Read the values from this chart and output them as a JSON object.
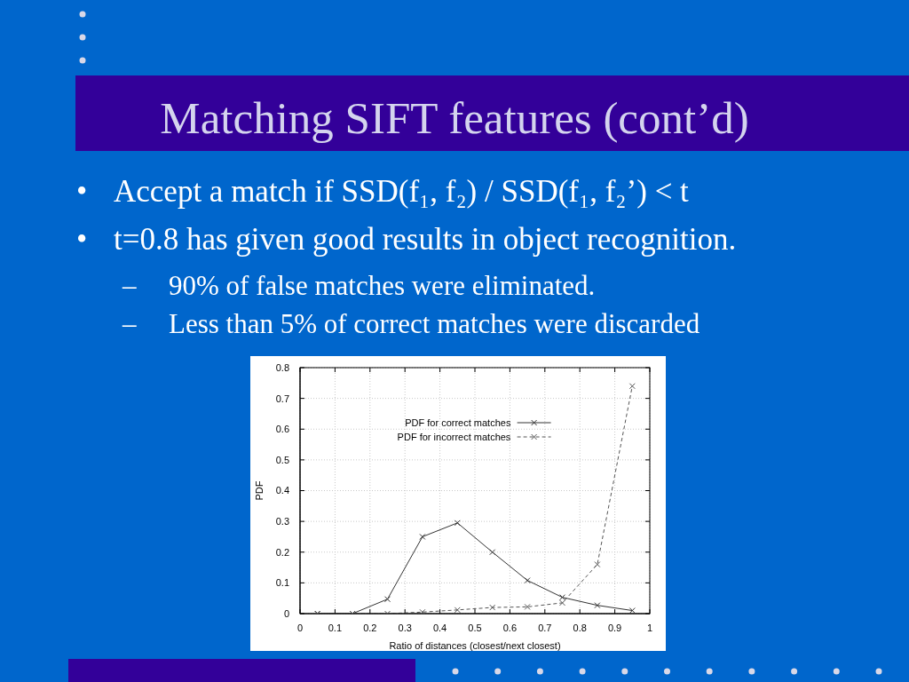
{
  "chart_data": {
    "type": "line",
    "title": "Matching SIFT features (cont’d)",
    "annotations": [
      "• Accept a match if SSD(f₁, f₂) / SSD(f₁, f₂’) < t",
      "• t=0.8 has given good results in object recognition.",
      "– 90% of false matches were eliminated.",
      "– Less than 5% of correct matches were discarded"
    ],
    "xlabel": "Ratio of distances (closest/next closest)",
    "ylabel": "PDF",
    "x": [
      0.05,
      0.15,
      0.25,
      0.35,
      0.45,
      0.55,
      0.65,
      0.75,
      0.85,
      0.95
    ],
    "series": [
      {
        "name": "PDF for correct matches",
        "color": "#333333",
        "values": [
          0,
          0,
          0.047,
          0.25,
          0.295,
          0.2,
          0.108,
          0.053,
          0.027,
          0.01
        ],
        "line_style": "solid"
      },
      {
        "name": "PDF for incorrect matches",
        "color": "#555555",
        "values": [
          0,
          0,
          0,
          0.005,
          0.012,
          0.02,
          0.022,
          0.035,
          0.16,
          0.74
        ],
        "line_style": "dashed"
      }
    ],
    "xlim": [
      0,
      1
    ],
    "ylim": [
      0,
      0.8
    ],
    "xticks": [
      0,
      0.1,
      0.2,
      0.3,
      0.4,
      0.5,
      0.6,
      0.7,
      0.8,
      0.9,
      1
    ],
    "yticks": [
      0,
      0.1,
      0.2,
      0.3,
      0.4,
      0.5,
      0.6,
      0.7,
      0.8
    ],
    "grid": true,
    "legend": "top",
    "marker": "cross"
  }
}
